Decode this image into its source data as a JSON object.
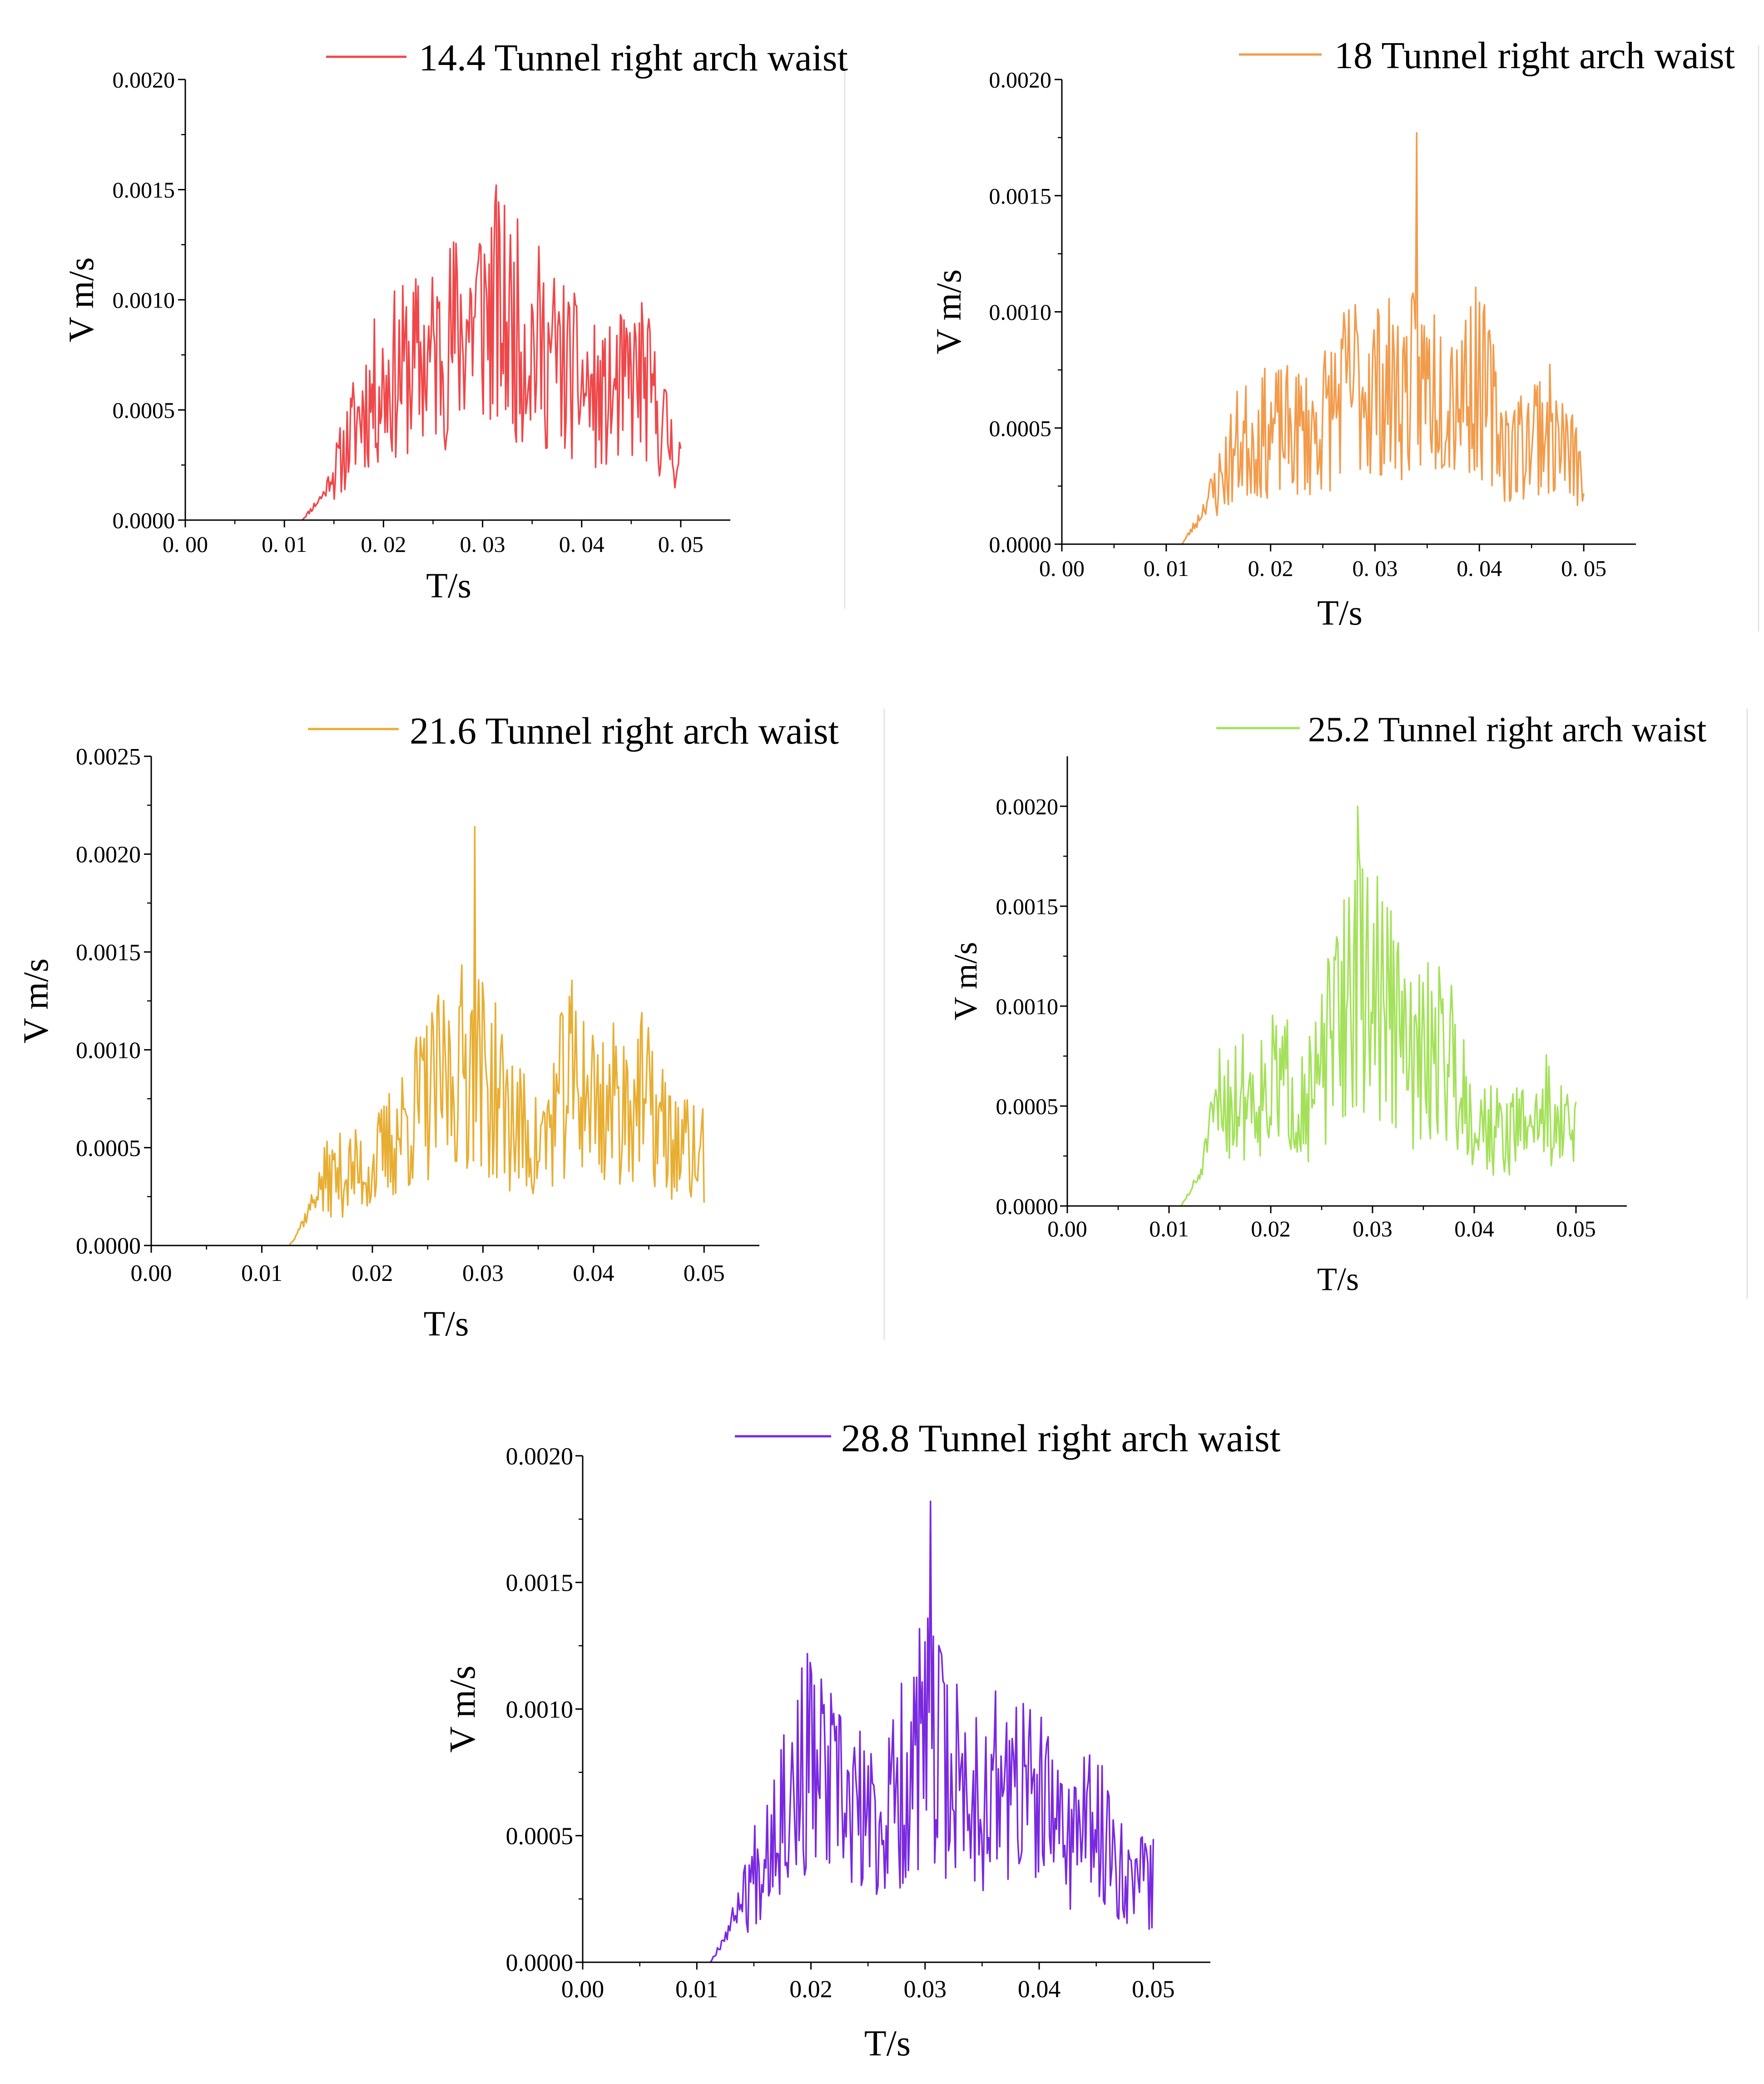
{
  "figure": {
    "panels": [
      "panel-14-4",
      "panel-18",
      "panel-21-6",
      "panel-25-2",
      "panel-28-8"
    ]
  },
  "chart_data": [
    {
      "id": "panel-14-4",
      "type": "line",
      "legend": "14.4 Tunnel right arch waist",
      "color": "#f0474a",
      "xlabel": "T/s",
      "ylabel": "V m/s",
      "xlim": [
        0,
        0.055
      ],
      "ylim": [
        0,
        0.002
      ],
      "xticks": [
        0,
        0.01,
        0.02,
        0.03,
        0.04,
        0.05
      ],
      "xtick_labels": [
        "0. 00",
        "0. 01",
        "0. 02",
        "0. 03",
        "0. 04",
        "0. 05"
      ],
      "yticks": [
        0,
        0.0005,
        0.001,
        0.0015,
        0.002
      ],
      "ytick_labels": [
        "0.0000",
        "0.0005",
        "0.0010",
        "0.0015",
        "0.0020"
      ],
      "onset": 0.0118,
      "peak": 0.00152,
      "peak_t": 0.0314,
      "envelope": [
        [
          0.0118,
          0.0
        ],
        [
          0.014,
          0.00012
        ],
        [
          0.016,
          0.00035
        ],
        [
          0.018,
          0.0006
        ],
        [
          0.021,
          0.00075
        ],
        [
          0.025,
          0.00085
        ],
        [
          0.03,
          0.0011
        ],
        [
          0.033,
          0.001
        ],
        [
          0.037,
          0.00085
        ],
        [
          0.042,
          0.0006
        ],
        [
          0.046,
          0.00075
        ],
        [
          0.049,
          0.0004
        ],
        [
          0.05,
          0.0003
        ]
      ],
      "seed": 11
    },
    {
      "id": "panel-18",
      "type": "line",
      "legend": "18 Tunnel right arch waist",
      "color": "#f29b4b",
      "xlabel": "T/s",
      "ylabel": "V m/s",
      "xlim": [
        0,
        0.055
      ],
      "ylim": [
        0,
        0.002
      ],
      "xticks": [
        0,
        0.01,
        0.02,
        0.03,
        0.04,
        0.05
      ],
      "xtick_labels": [
        "0. 00",
        "0. 01",
        "0. 02",
        "0. 03",
        "0. 04",
        "0. 05"
      ],
      "yticks": [
        0,
        0.0005,
        0.001,
        0.0015,
        0.002
      ],
      "ytick_labels": [
        "0.0000",
        "0.0005",
        "0.0010",
        "0.0015",
        "0.0020"
      ],
      "onset": 0.0115,
      "peak": 0.00177,
      "peak_t": 0.034,
      "envelope": [
        [
          0.0115,
          0.0
        ],
        [
          0.013,
          0.0001
        ],
        [
          0.015,
          0.0003
        ],
        [
          0.017,
          0.0005
        ],
        [
          0.02,
          0.00055
        ],
        [
          0.024,
          0.00055
        ],
        [
          0.028,
          0.0008
        ],
        [
          0.032,
          0.00075
        ],
        [
          0.035,
          0.0008
        ],
        [
          0.04,
          0.0008
        ],
        [
          0.043,
          0.00045
        ],
        [
          0.046,
          0.0006
        ],
        [
          0.05,
          0.00035
        ]
      ],
      "seed": 23
    },
    {
      "id": "panel-21-6",
      "type": "line",
      "legend": "21.6 Tunnel right arch waist",
      "color": "#e8ae33",
      "xlabel": "T/s",
      "ylabel": "V m/s",
      "xlim": [
        0,
        0.055
      ],
      "ylim": [
        0,
        0.0025
      ],
      "xticks": [
        0,
        0.01,
        0.02,
        0.03,
        0.04,
        0.05
      ],
      "xtick_labels": [
        "0.00",
        "0.01",
        "0.02",
        "0.03",
        "0.04",
        "0.05"
      ],
      "yticks": [
        0,
        0.0005,
        0.001,
        0.0015,
        0.002,
        0.0025
      ],
      "ytick_labels": [
        "0.0000",
        "0.0005",
        "0.0010",
        "0.0015",
        "0.0020",
        "0.0025"
      ],
      "onset": 0.0125,
      "peak": 0.00214,
      "peak_t": 0.0293,
      "envelope": [
        [
          0.0125,
          0.0
        ],
        [
          0.014,
          0.00015
        ],
        [
          0.016,
          0.0004
        ],
        [
          0.02,
          0.00045
        ],
        [
          0.024,
          0.0008
        ],
        [
          0.029,
          0.0011
        ],
        [
          0.033,
          0.0007
        ],
        [
          0.035,
          0.00055
        ],
        [
          0.038,
          0.001
        ],
        [
          0.041,
          0.0008
        ],
        [
          0.044,
          0.0009
        ],
        [
          0.047,
          0.0006
        ],
        [
          0.05,
          0.0005
        ]
      ],
      "seed": 37
    },
    {
      "id": "panel-25-2",
      "type": "line",
      "legend": "25.2 Tunnel right arch waist",
      "color": "#a4e15a",
      "xlabel": "T/s",
      "ylabel": "V m/s",
      "xlim": [
        0,
        0.055
      ],
      "ylim": [
        0,
        0.00225
      ],
      "xticks": [
        0,
        0.01,
        0.02,
        0.03,
        0.04,
        0.05
      ],
      "xtick_labels": [
        "0.00",
        "0.01",
        "0.02",
        "0.03",
        "0.04",
        "0.05"
      ],
      "yticks": [
        0,
        0.0005,
        0.001,
        0.0015,
        0.002
      ],
      "ytick_labels": [
        "0.0000",
        "0.0005",
        "0.0010",
        "0.0015",
        "0.0020"
      ],
      "onset": 0.0112,
      "peak": 0.002,
      "peak_t": 0.0285,
      "envelope": [
        [
          0.0112,
          0.0
        ],
        [
          0.013,
          0.00015
        ],
        [
          0.015,
          0.0006
        ],
        [
          0.018,
          0.00065
        ],
        [
          0.021,
          0.0007
        ],
        [
          0.024,
          0.0006
        ],
        [
          0.028,
          0.0013
        ],
        [
          0.031,
          0.0012
        ],
        [
          0.034,
          0.0008
        ],
        [
          0.037,
          0.00095
        ],
        [
          0.04,
          0.0005
        ],
        [
          0.043,
          0.0004
        ],
        [
          0.047,
          0.00055
        ],
        [
          0.05,
          0.0004
        ]
      ],
      "seed": 51
    },
    {
      "id": "panel-28-8",
      "type": "line",
      "legend": "28.8 Tunnel right arch waist",
      "color": "#7a28e0",
      "xlabel": "T/s",
      "ylabel": "V m/s",
      "xlim": [
        0,
        0.055
      ],
      "ylim": [
        0,
        0.002
      ],
      "xticks": [
        0,
        0.01,
        0.02,
        0.03,
        0.04,
        0.05
      ],
      "xtick_labels": [
        "0.00",
        "0.01",
        "0.02",
        "0.03",
        "0.04",
        "0.05"
      ],
      "yticks": [
        0,
        0.0005,
        0.001,
        0.0015,
        0.002
      ],
      "ytick_labels": [
        "0.0000",
        "0.0005",
        "0.0010",
        "0.0015",
        "0.0020"
      ],
      "onset": 0.0112,
      "peak": 0.00182,
      "peak_t": 0.0305,
      "envelope": [
        [
          0.0112,
          0.0
        ],
        [
          0.013,
          0.00015
        ],
        [
          0.015,
          0.0004
        ],
        [
          0.017,
          0.0007
        ],
        [
          0.02,
          0.0009
        ],
        [
          0.023,
          0.0007
        ],
        [
          0.026,
          0.0006
        ],
        [
          0.03,
          0.001
        ],
        [
          0.034,
          0.00075
        ],
        [
          0.038,
          0.0008
        ],
        [
          0.042,
          0.0006
        ],
        [
          0.045,
          0.0006
        ],
        [
          0.048,
          0.0004
        ],
        [
          0.05,
          0.00035
        ]
      ],
      "seed": 67
    }
  ]
}
